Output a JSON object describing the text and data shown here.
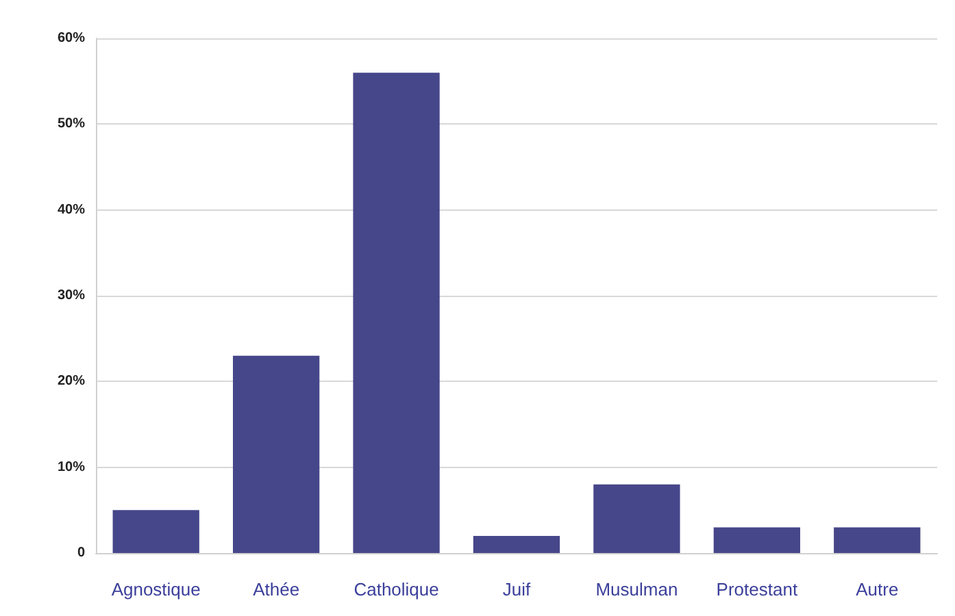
{
  "chart_data": {
    "type": "bar",
    "categories": [
      "Agnostique",
      "Athée",
      "Catholique",
      "Juif",
      "Musulman",
      "Protestant",
      "Autre"
    ],
    "values": [
      5,
      23,
      56,
      2,
      8,
      3,
      3
    ],
    "color": "#46468a",
    "ylim": [
      0,
      60
    ],
    "yticks": [
      {
        "value": 0,
        "label": "0"
      },
      {
        "value": 10,
        "label": "10%"
      },
      {
        "value": 20,
        "label": "20%"
      },
      {
        "value": 30,
        "label": "30%"
      },
      {
        "value": 40,
        "label": "40%"
      },
      {
        "value": 50,
        "label": "50%"
      },
      {
        "value": 60,
        "label": "60%"
      }
    ],
    "grid": "y"
  }
}
